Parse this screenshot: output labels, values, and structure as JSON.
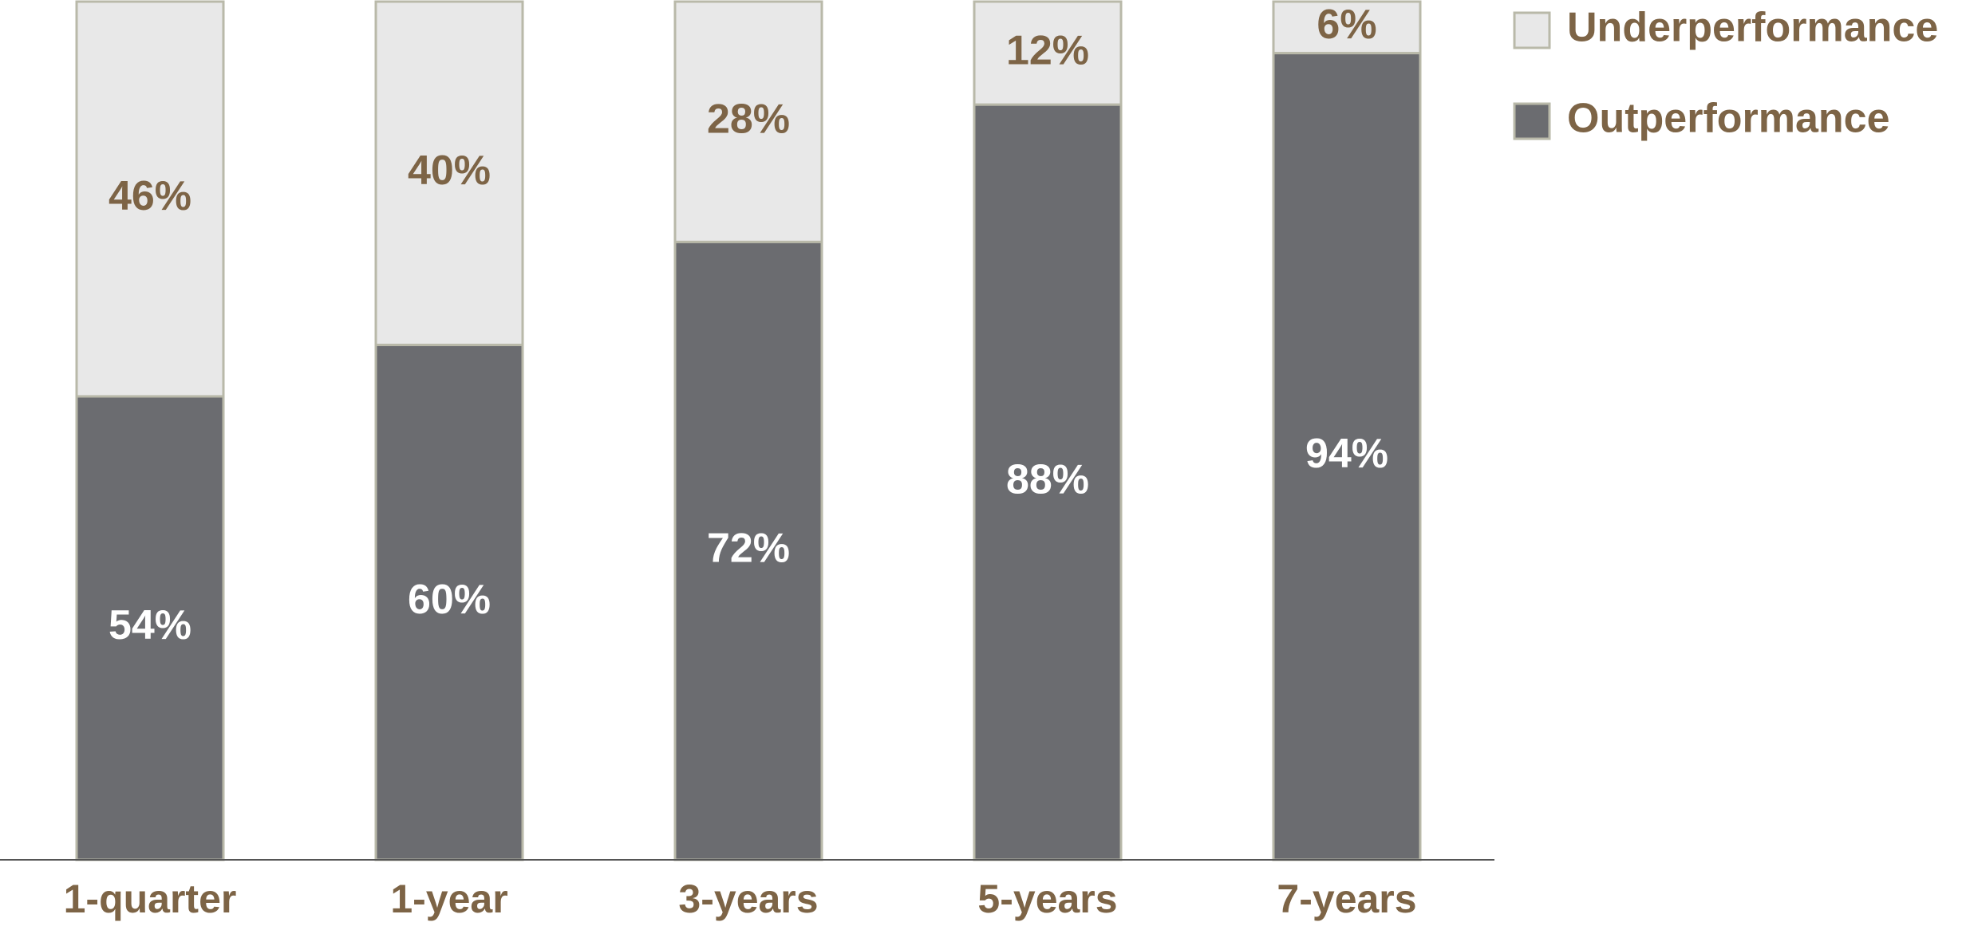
{
  "chart_data": {
    "type": "stacked-bar",
    "categories": [
      "1-quarter",
      "1-year",
      "3-years",
      "5-years",
      "7-years"
    ],
    "series": [
      {
        "name": "Outperformance",
        "color": "#6b6c70",
        "label_color": "#ffffff",
        "values": [
          54,
          60,
          72,
          88,
          94
        ],
        "value_labels": [
          "54%",
          "60%",
          "72%",
          "88%",
          "94%"
        ]
      },
      {
        "name": "Underperformance",
        "color": "#e8e8e8",
        "label_color": "#7d6446",
        "values": [
          46,
          40,
          28,
          12,
          6
        ],
        "value_labels": [
          "46%",
          "40%",
          "28%",
          "12%",
          "6%"
        ]
      }
    ],
    "ylim": [
      0,
      100
    ]
  }
}
